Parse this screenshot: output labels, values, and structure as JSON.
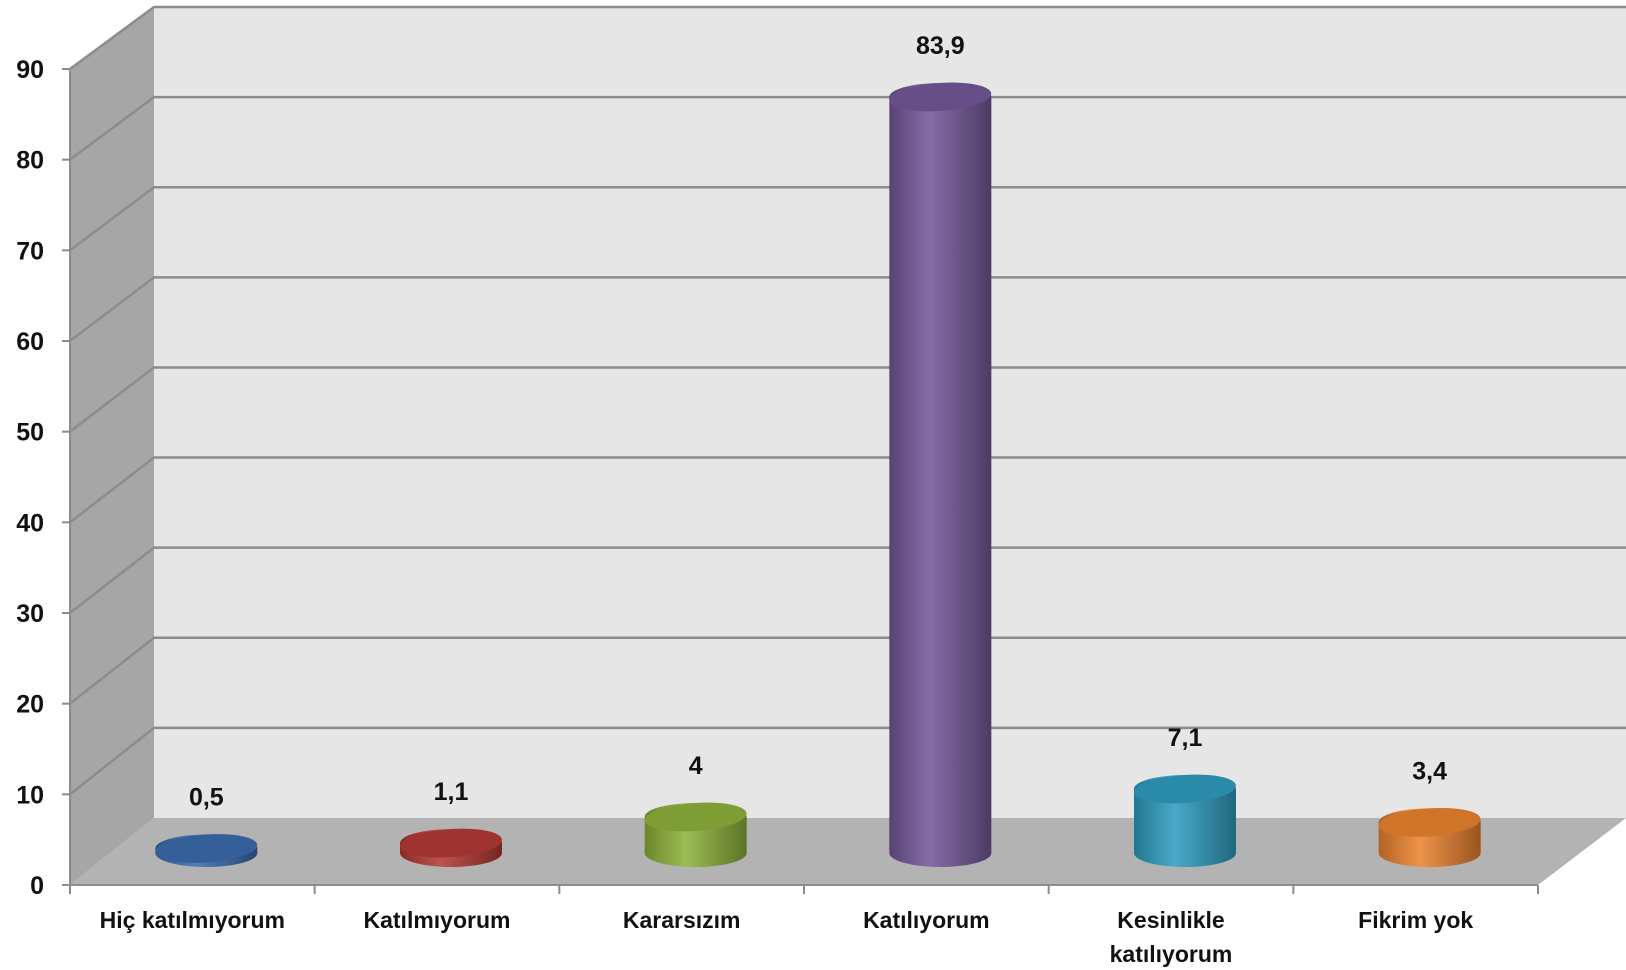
{
  "chart_data": {
    "type": "bar",
    "style": "3d-cylinder",
    "categories": [
      "Hiç katılmıyorum",
      "Katılmıyorum",
      "Kararsızım",
      "Katılıyorum",
      "Kesinlikle katılıyorum",
      "Fikrim yok"
    ],
    "category_lines": [
      [
        "Hiç katılmıyorum"
      ],
      [
        "Katılmıyorum"
      ],
      [
        "Kararsızım"
      ],
      [
        "Katılıyorum"
      ],
      [
        "Kesinlikle",
        "katılıyorum"
      ],
      [
        "Fikrim yok"
      ]
    ],
    "values": [
      0.5,
      1.1,
      4,
      83.9,
      7.1,
      3.4
    ],
    "data_labels": [
      "0,5",
      "1,1",
      "4",
      "83,9",
      "7,1",
      "3,4"
    ],
    "colors": [
      "#3b6cae",
      "#b53a36",
      "#8fb33c",
      "#76599a",
      "#2f9ec0",
      "#ec8430"
    ],
    "ylim": [
      0,
      90
    ],
    "yticks": [
      0,
      10,
      20,
      30,
      40,
      50,
      60,
      70,
      80,
      90
    ],
    "grid": true,
    "legend": "none",
    "title": "",
    "xlabel": "",
    "ylabel": ""
  }
}
